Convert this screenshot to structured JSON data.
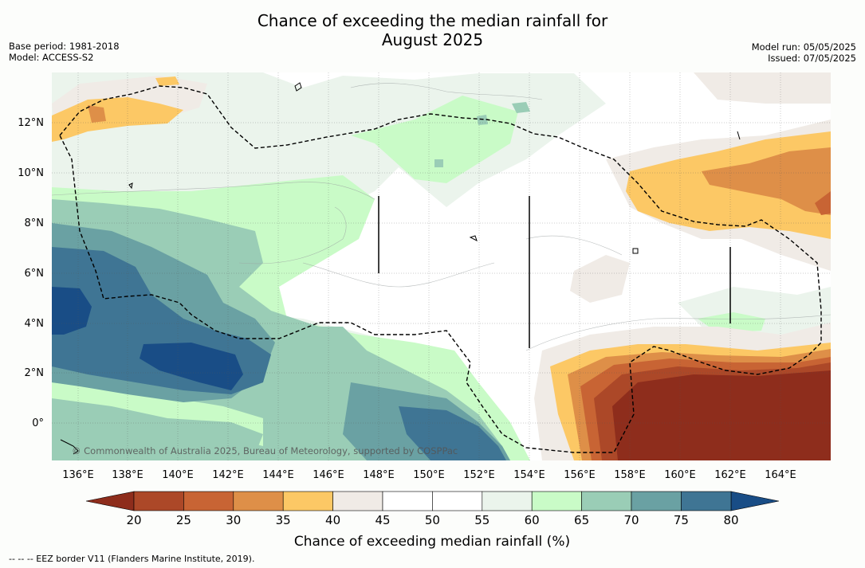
{
  "title": {
    "line1": "Chance of exceeding the median rainfall for",
    "line2": "August 2025"
  },
  "meta_left": {
    "base_period": "Base period: 1981-2018",
    "model": "Model: ACCESS-S2"
  },
  "meta_right": {
    "model_run": "Model run: 05/05/2025",
    "issued": "Issued: 07/05/2025"
  },
  "map": {
    "lat_labels": [
      "12°N",
      "10°N",
      "8°N",
      "6°N",
      "4°N",
      "2°N",
      "0°"
    ],
    "lon_labels": [
      "136°E",
      "138°E",
      "140°E",
      "142°E",
      "144°E",
      "146°E",
      "148°E",
      "150°E",
      "152°E",
      "154°E",
      "156°E",
      "158°E",
      "160°E",
      "162°E",
      "164°E"
    ],
    "copyright": "© Commonwealth of Australia 2025, Bureau of Meteorology, supported by COSPPac"
  },
  "colorbar": {
    "ticks": [
      "20",
      "25",
      "30",
      "35",
      "40",
      "45",
      "50",
      "55",
      "60",
      "65",
      "70",
      "75",
      "80"
    ],
    "colors": [
      "#8e2d1c",
      "#ac4828",
      "#c86434",
      "#de8f48",
      "#fcc865",
      "#f0ebe6",
      "#ffffff",
      "#ffffff",
      "#ebf4ec",
      "#c9fbc7",
      "#9acdb6",
      "#6aa1a3",
      "#3f7594",
      "#194d86"
    ],
    "label": "Chance of exceeding median rainfall (%)"
  },
  "legend_note": "--  --  -- EEZ border V11 (Flanders Marine Institute, 2019)."
}
